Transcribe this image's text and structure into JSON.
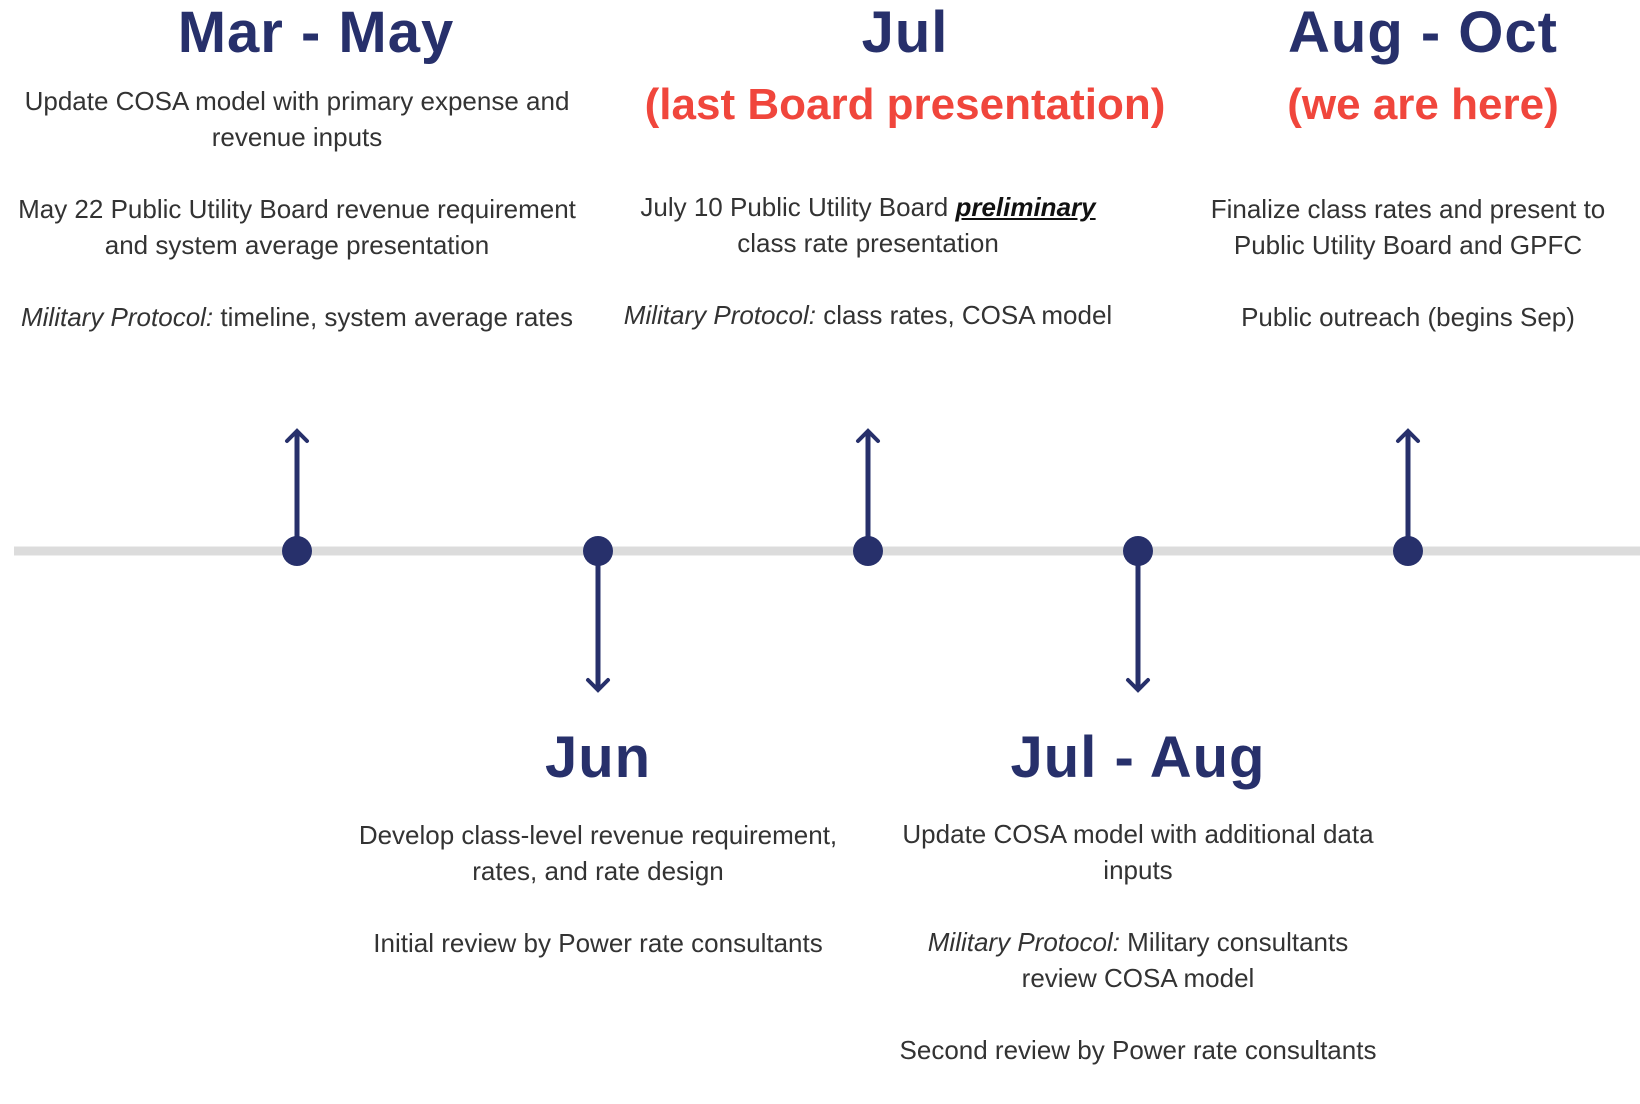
{
  "stages": [
    {
      "title": "Mar - May",
      "paragraphs": [
        {
          "text": "Update COSA model with primary expense and revenue inputs"
        },
        {
          "text": "May 22 Public Utility Board revenue requirement and system average presentation"
        },
        {
          "lead": "Military Protocol:",
          "text": "timeline, system average rates"
        }
      ]
    },
    {
      "title": "Jun",
      "paragraphs": [
        {
          "text": "Develop class-level revenue requirement, rates, and rate design"
        },
        {
          "text": "Initial review by Power rate consultants"
        }
      ]
    },
    {
      "title": "Jul",
      "subtitle": "(last Board presentation)",
      "paragraphs": [
        {
          "text": "July 10 Public Utility Board",
          "emphasis": "preliminary",
          "rest": "class rate presentation"
        },
        {
          "lead": "Military Protocol:",
          "text": "class rates, COSA model"
        }
      ]
    },
    {
      "title": "Jul - Aug",
      "paragraphs": [
        {
          "text": "Update COSA model with additional data inputs"
        },
        {
          "lead": "Military Protocol:",
          "text": "Military consultants review COSA model"
        },
        {
          "text": "Second review by Power rate consultants"
        }
      ]
    },
    {
      "title": "Aug - Oct",
      "subtitle": "(we are here)",
      "paragraphs": [
        {
          "text": "Finalize class rates and present to Public Utility Board and GPFC"
        },
        {
          "text": "Public outreach (begins Sep)"
        }
      ]
    }
  ]
}
